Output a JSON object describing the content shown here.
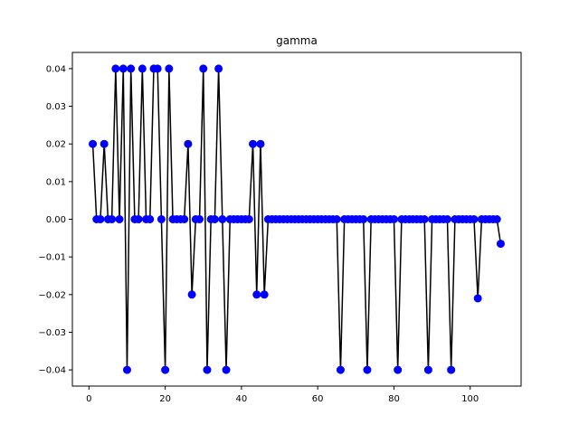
{
  "chart_data": {
    "type": "line",
    "title": "gamma",
    "xlabel": "",
    "ylabel": "",
    "xlim": [
      -4.35,
      113.35
    ],
    "ylim": [
      -0.0443,
      0.0443
    ],
    "xticks": [
      0,
      20,
      40,
      60,
      80,
      100
    ],
    "yticks": [
      -0.04,
      -0.03,
      -0.02,
      -0.01,
      0.0,
      0.01,
      0.02,
      0.03,
      0.04
    ],
    "xtick_labels": [
      "0",
      "20",
      "40",
      "60",
      "80",
      "100"
    ],
    "ytick_labels": [
      "−0.04",
      "−0.03",
      "−0.02",
      "−0.01",
      "0.00",
      "0.01",
      "0.02",
      "0.03",
      "0.04"
    ],
    "grid": false,
    "line_color": "#000000",
    "marker_color": "#0000ff",
    "series": [
      {
        "x": [
          1,
          2,
          3,
          4,
          5,
          6,
          7,
          8,
          9,
          10,
          11,
          12,
          13,
          14,
          15,
          16,
          17,
          18,
          19,
          20,
          21,
          22,
          23,
          24,
          25,
          26,
          27,
          28,
          29,
          30,
          31,
          32,
          33,
          34,
          35,
          36,
          37,
          38,
          39,
          40,
          41,
          42,
          43,
          44,
          45,
          46,
          47,
          48,
          49,
          50,
          51,
          52,
          53,
          54,
          55,
          56,
          57,
          58,
          59,
          60,
          61,
          62,
          63,
          64,
          65,
          66,
          67,
          68,
          69,
          70,
          71,
          72,
          73,
          74,
          75,
          76,
          77,
          78,
          79,
          80,
          81,
          82,
          83,
          84,
          85,
          86,
          87,
          88,
          89,
          90,
          91,
          92,
          93,
          94,
          95,
          96,
          97,
          98,
          99,
          100,
          101,
          102,
          103,
          104,
          105,
          106,
          107,
          108
        ],
        "values": [
          0.02,
          0,
          0,
          0.02,
          0,
          0,
          0.04,
          0,
          0.04,
          -0.04,
          0.04,
          0,
          0,
          0.04,
          0,
          0,
          0.04,
          0.04,
          0,
          -0.04,
          0.04,
          0,
          0,
          0,
          0,
          0.02,
          -0.02,
          0,
          0,
          0.04,
          -0.04,
          0,
          0,
          0.04,
          0,
          -0.04,
          0,
          0,
          0,
          0,
          0,
          0,
          0.02,
          -0.02,
          0.02,
          -0.02,
          0,
          0,
          0,
          0,
          0,
          0,
          0,
          0,
          0,
          0,
          0,
          0,
          0,
          0,
          0,
          0,
          0,
          0,
          0,
          -0.04,
          0,
          0,
          0,
          0,
          0,
          0,
          -0.04,
          0,
          0,
          0,
          0,
          0,
          0,
          0,
          -0.04,
          0,
          0,
          0,
          0,
          0,
          0,
          0,
          -0.04,
          0,
          0,
          0,
          0,
          0,
          -0.04,
          0,
          0,
          0,
          0,
          0,
          0,
          -0.021,
          0,
          0,
          0,
          0,
          0,
          -0.0065
        ]
      }
    ]
  }
}
